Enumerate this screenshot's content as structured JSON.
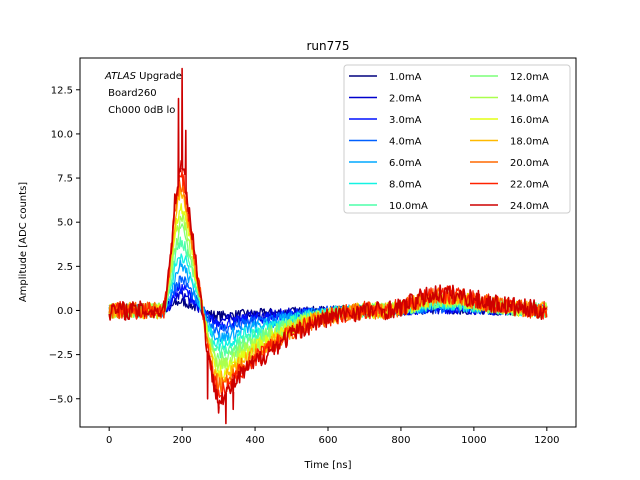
{
  "chart_data": {
    "type": "line",
    "title": "run775",
    "xlabel": "Time [ns]",
    "ylabel": "Amplitude [ADC counts]",
    "xlim": [
      -80,
      1280
    ],
    "ylim": [
      -6.6,
      14.3
    ],
    "xticks": [
      0,
      200,
      400,
      600,
      800,
      1000,
      1200
    ],
    "xtick_labels": [
      "0",
      "200",
      "400",
      "600",
      "800",
      "1000",
      "1200"
    ],
    "yticks": [
      -5.0,
      -2.5,
      0.0,
      2.5,
      5.0,
      7.5,
      10.0,
      12.5
    ],
    "ytick_labels": [
      "−5.0",
      "−2.5",
      "0.0",
      "2.5",
      "5.0",
      "7.5",
      "10.0",
      "12.5"
    ],
    "grid": false,
    "legend_position": "top-right",
    "legend_columns": 2,
    "annotation": {
      "italic": "ATLAS",
      "rest": " Upgrade",
      "line2": " Board260",
      "line3": " Ch000 0dB lo"
    },
    "pulse_shape": {
      "x": [
        0,
        150,
        165,
        180,
        195,
        205,
        220,
        240,
        255,
        270,
        285,
        300,
        320,
        340,
        360,
        380,
        400,
        430,
        460,
        500,
        550,
        600,
        650,
        700,
        750,
        800,
        850,
        900,
        950,
        1000,
        1050,
        1100,
        1150,
        1200
      ],
      "y": [
        0,
        0,
        0.3,
        0.75,
        1.0,
        0.95,
        0.68,
        0.3,
        0.02,
        -0.28,
        -0.5,
        -0.6,
        -0.58,
        -0.52,
        -0.45,
        -0.4,
        -0.36,
        -0.3,
        -0.24,
        -0.17,
        -0.1,
        -0.05,
        -0.02,
        0.0,
        0.0,
        0.02,
        0.08,
        0.12,
        0.11,
        0.08,
        0.05,
        0.03,
        0.01,
        0.0
      ]
    },
    "series": [
      {
        "name": "1.0mA",
        "color": "#00007f",
        "peak": 0.5
      },
      {
        "name": "2.0mA",
        "color": "#0000cd",
        "peak": 0.9
      },
      {
        "name": "3.0mA",
        "color": "#0010ff",
        "peak": 1.3
      },
      {
        "name": "4.0mA",
        "color": "#0060ff",
        "peak": 1.8
      },
      {
        "name": "6.0mA",
        "color": "#00a8ff",
        "peak": 2.6
      },
      {
        "name": "8.0mA",
        "color": "#14f3e3",
        "peak": 3.2
      },
      {
        "name": "10.0mA",
        "color": "#4dffaa",
        "peak": 4.0
      },
      {
        "name": "12.0mA",
        "color": "#7cff79",
        "peak": 4.7
      },
      {
        "name": "14.0mA",
        "color": "#aaff4d",
        "peak": 5.3
      },
      {
        "name": "16.0mA",
        "color": "#e3ff14",
        "peak": 6.0
      },
      {
        "name": "18.0mA",
        "color": "#ffb900",
        "peak": 6.6
      },
      {
        "name": "20.0mA",
        "color": "#ff6800",
        "peak": 7.2
      },
      {
        "name": "22.0mA",
        "color": "#ff2200",
        "peak": 7.7
      },
      {
        "name": "24.0mA",
        "color": "#cd0000",
        "peak": 8.2,
        "spikes": [
          [
            190,
            12.0
          ],
          [
            200,
            13.7
          ],
          [
            210,
            10.2
          ],
          [
            300,
            -5.8
          ],
          [
            320,
            -6.4
          ],
          [
            340,
            -5.6
          ],
          [
            270,
            -5.0
          ]
        ]
      }
    ]
  }
}
